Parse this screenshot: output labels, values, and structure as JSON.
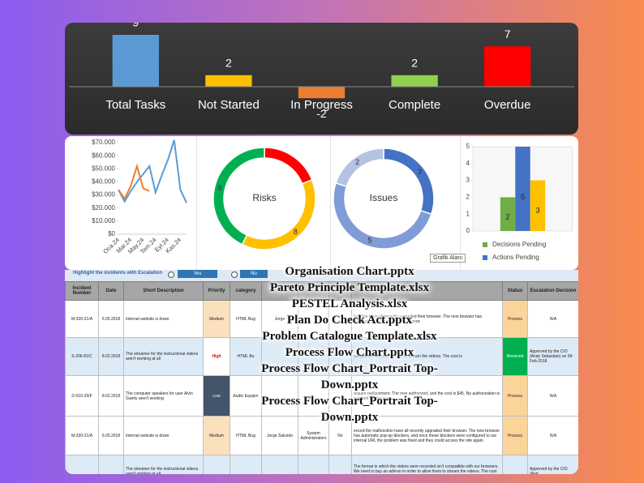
{
  "chart_data": [
    {
      "type": "bar",
      "categories": [
        "Total Tasks",
        "Not Started",
        "In Progress",
        "Complete",
        "Overdue"
      ],
      "values": [
        9,
        2,
        -2,
        2,
        7
      ],
      "colors": [
        "#5b9bd5",
        "#ffc000",
        "#ed7d31",
        "#92d050",
        "#ff0000"
      ],
      "data_labels": true
    },
    {
      "type": "line",
      "categories": [
        "Oca.24",
        null,
        "Mar.24",
        null,
        "May.24",
        null,
        "Tem.24",
        null,
        "Eyl.24",
        null,
        "Kas.24",
        null
      ],
      "series": [
        {
          "color": "#5b9bd5",
          "values": [
            34000,
            25000,
            33000,
            40000,
            46000,
            52000,
            32000,
            45000,
            57000,
            72000,
            34000,
            24000
          ]
        },
        {
          "color": "#ed7d31",
          "values": [
            34000,
            27000,
            37000,
            52000,
            35000,
            33000,
            null,
            null,
            null,
            null,
            null,
            null
          ]
        }
      ],
      "ylim": [
        0,
        70000
      ],
      "yticks": [
        {
          "value": 0,
          "label": "$0"
        },
        {
          "value": 10000,
          "label": "$10.000"
        },
        {
          "value": 20000,
          "label": "$20.000"
        },
        {
          "value": 30000,
          "label": "$30.000"
        },
        {
          "value": 40000,
          "label": "$40.000"
        },
        {
          "value": 50000,
          "label": "$50.000"
        },
        {
          "value": 60000,
          "label": "$60.000"
        },
        {
          "value": 70000,
          "label": "$70.000"
        }
      ]
    },
    {
      "type": "pie",
      "donut": true,
      "title": "Risks",
      "values": [
        4,
        8,
        9
      ],
      "value_labels": [
        null,
        "8",
        "9"
      ],
      "colors": [
        "#ff0000",
        "#ffc000",
        "#00b050"
      ]
    },
    {
      "type": "pie",
      "donut": true,
      "title": "Issues",
      "values": [
        3,
        5,
        2
      ],
      "colors": [
        "#4472c4",
        "#7f9cd6",
        "#b4c3e3"
      ]
    },
    {
      "type": "bar",
      "categories": [
        "Decisions Pending",
        "Actions Pending",
        null
      ],
      "values": [
        2,
        5,
        3
      ],
      "colors": [
        "#70ad47",
        "#4472c4",
        "#ffc000"
      ],
      "ylim": [
        0,
        5
      ],
      "yticks": [
        0,
        1,
        2,
        3,
        4,
        5
      ],
      "data_labels": true,
      "legend": "bottom"
    }
  ],
  "controls": {
    "highlight_label": "Highlight the incidents with  Escalation",
    "yes": "Yes",
    "no": "No",
    "tooltip": "Grafik Alanı"
  },
  "table": {
    "headers": [
      "Incident Number",
      "Date",
      "Short Description",
      "Priority",
      "category",
      null,
      null,
      null,
      null,
      "Status",
      "Escalation Decision"
    ],
    "rows": [
      [
        "M-330-21/A",
        "6.05.2018",
        "Internal website is down",
        "Medium",
        "HTML Bug",
        "Jorge",
        null,
        null,
        "function have all recently upgraded their browser. The new browser has automatic pop-up blockers, and once",
        "Process",
        "N/A"
      ],
      [
        "S-206-81/C",
        "8.02.2018",
        "The streamer for the instructional videos aren't working at all",
        "High",
        "HTML Bu",
        null,
        null,
        null,
        "compatible with our browsers. stream the videos. The cost is",
        "Received",
        "Approved by the CIO (Andy Sebastian) on 09-Feb-2018"
      ],
      [
        "D-010-29/F",
        "8.02.2018",
        "The computer speakers for user Alvin Gainty aren't working",
        "Low",
        "Audio Equipm",
        null,
        null,
        null,
        "require replacement. The new authorized, and the cost is $45. No authorization is required for this sum",
        "Process",
        "N/A"
      ],
      [
        "M-330-21/A",
        "6.05.2018",
        "Internal website is down",
        "Medium",
        "HTML Bug",
        "Jorge Salcedo",
        "System Administrators",
        "No",
        "enced the malfunction have all recently upgraded their browser. The new browser has automatic pop-up blockers, and once these blockers were configured to our internal URL the problem was fixed and they could access the site again.",
        "Process",
        "N/A"
      ],
      [
        null,
        null,
        "The streamer for the instructional videos aren't working at all",
        null,
        null,
        null,
        null,
        null,
        "The format in which the videos were recorded isn't compatible with our browsers. We need to buy an add-on in order to allow them to stream the videos. The cost is $5,200 for all of the company, per year",
        null,
        "Approved by the CIO (And"
      ]
    ],
    "row_colors": [
      "#ffffff",
      "#ddebf7",
      "#ffffff",
      "#ffffff",
      "#ddebf7"
    ],
    "priority_styles": {
      "Medium": {
        "fill": "#fbe0bd"
      },
      "High": {
        "fill": "#ffffff",
        "text": "#e00000"
      },
      "Low": {
        "fill": "#44546a",
        "text": "#ffffff"
      }
    },
    "status_styles": {
      "Process": {
        "fill": "#fbd49a"
      },
      "Received": {
        "fill": "#00b050",
        "text": "#ffffff"
      }
    }
  },
  "file_list": [
    "Organisation Chart.pptx",
    "Pareto Principle Template.xlsx",
    "PESTEL Analysis.xlsx",
    "Plan Do Check Act.pptx",
    "Problem Catalogue Template.xlsx",
    "Process Flow Chart.pptx",
    "Process Flow Chart_Portrait Top-Down.pptx",
    "Process Flow Chart_Portrait Top-Down.pptx"
  ]
}
